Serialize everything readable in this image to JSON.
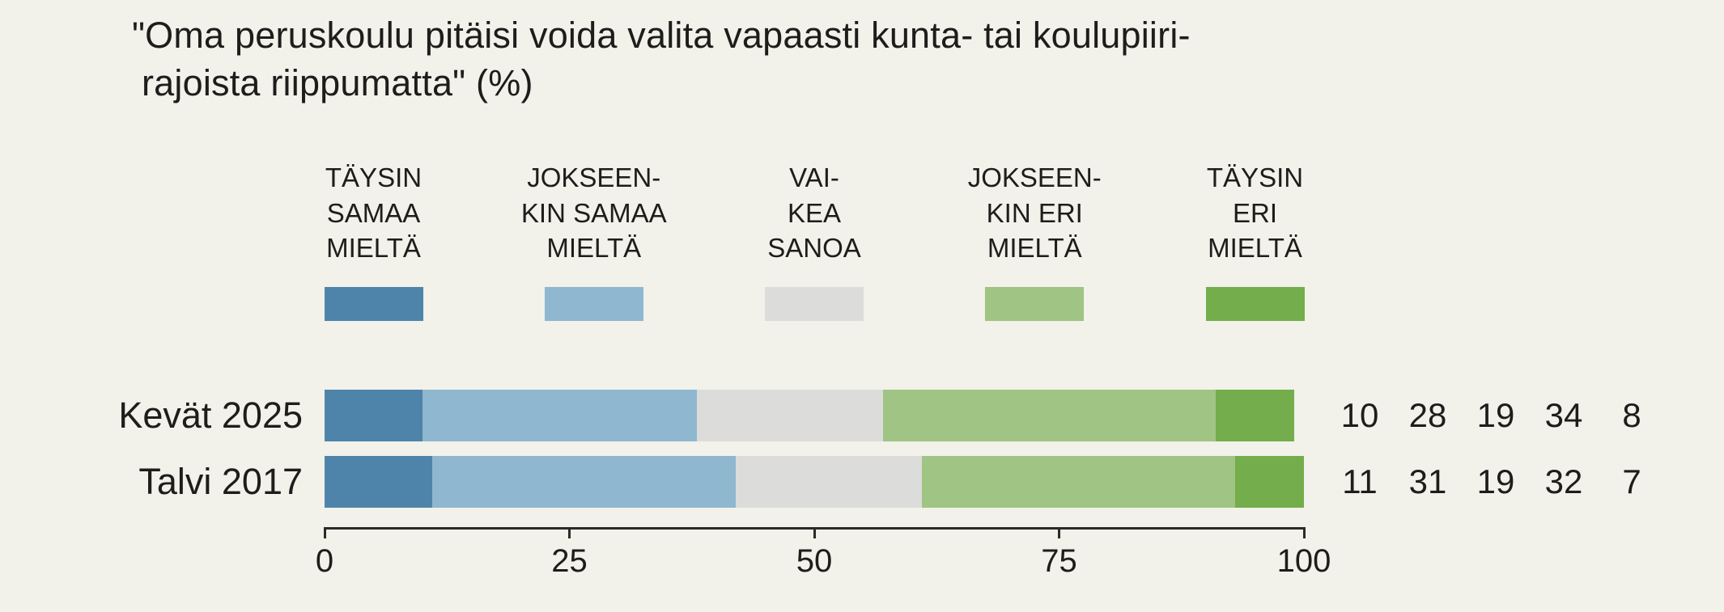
{
  "title": {
    "line1": "\"Oma peruskoulu pitäisi voida valita vapaasti kunta- tai koulupiiri-",
    "line2": "rajoista riippumatta\" (%)"
  },
  "colors": {
    "background": "#f2f1ea",
    "text": "#1d1d1b",
    "axis": "#2a2a28"
  },
  "legend": {
    "items": [
      {
        "label": "TÄYSIN\nSAMAA\nMIELTÄ",
        "color": "#4e84aa"
      },
      {
        "label": "JOKSEEN-\nKIN SAMAA\nMIELTÄ",
        "color": "#8fb7cf"
      },
      {
        "label": "VAI-\nKEA\nSANOA",
        "color": "#dcdcda"
      },
      {
        "label": "JOKSEEN-\nKIN ERI\nMIELTÄ",
        "color": "#9fc483"
      },
      {
        "label": "TÄYSIN\nERI\nMIELTÄ",
        "color": "#74ad4b"
      }
    ]
  },
  "chart_data": {
    "type": "bar",
    "orientation": "horizontal-stacked",
    "categories": [
      "Kevät 2025",
      "Talvi 2017"
    ],
    "series": [
      {
        "name": "Täysin samaa mieltä",
        "color": "#4e84aa",
        "values": [
          10,
          11
        ]
      },
      {
        "name": "Jokseenkin samaa mieltä",
        "color": "#8fb7cf",
        "values": [
          28,
          31
        ]
      },
      {
        "name": "Vaikea sanoa",
        "color": "#dcdcda",
        "values": [
          19,
          19
        ]
      },
      {
        "name": "Jokseenkin eri mieltä",
        "color": "#9fc483",
        "values": [
          34,
          32
        ]
      },
      {
        "name": "Täysin eri mieltä",
        "color": "#74ad4b",
        "values": [
          8,
          7
        ]
      }
    ],
    "x_ticks": [
      0,
      25,
      50,
      75,
      100
    ],
    "xlim": [
      0,
      100
    ],
    "grid": false,
    "legend_position": "top"
  }
}
